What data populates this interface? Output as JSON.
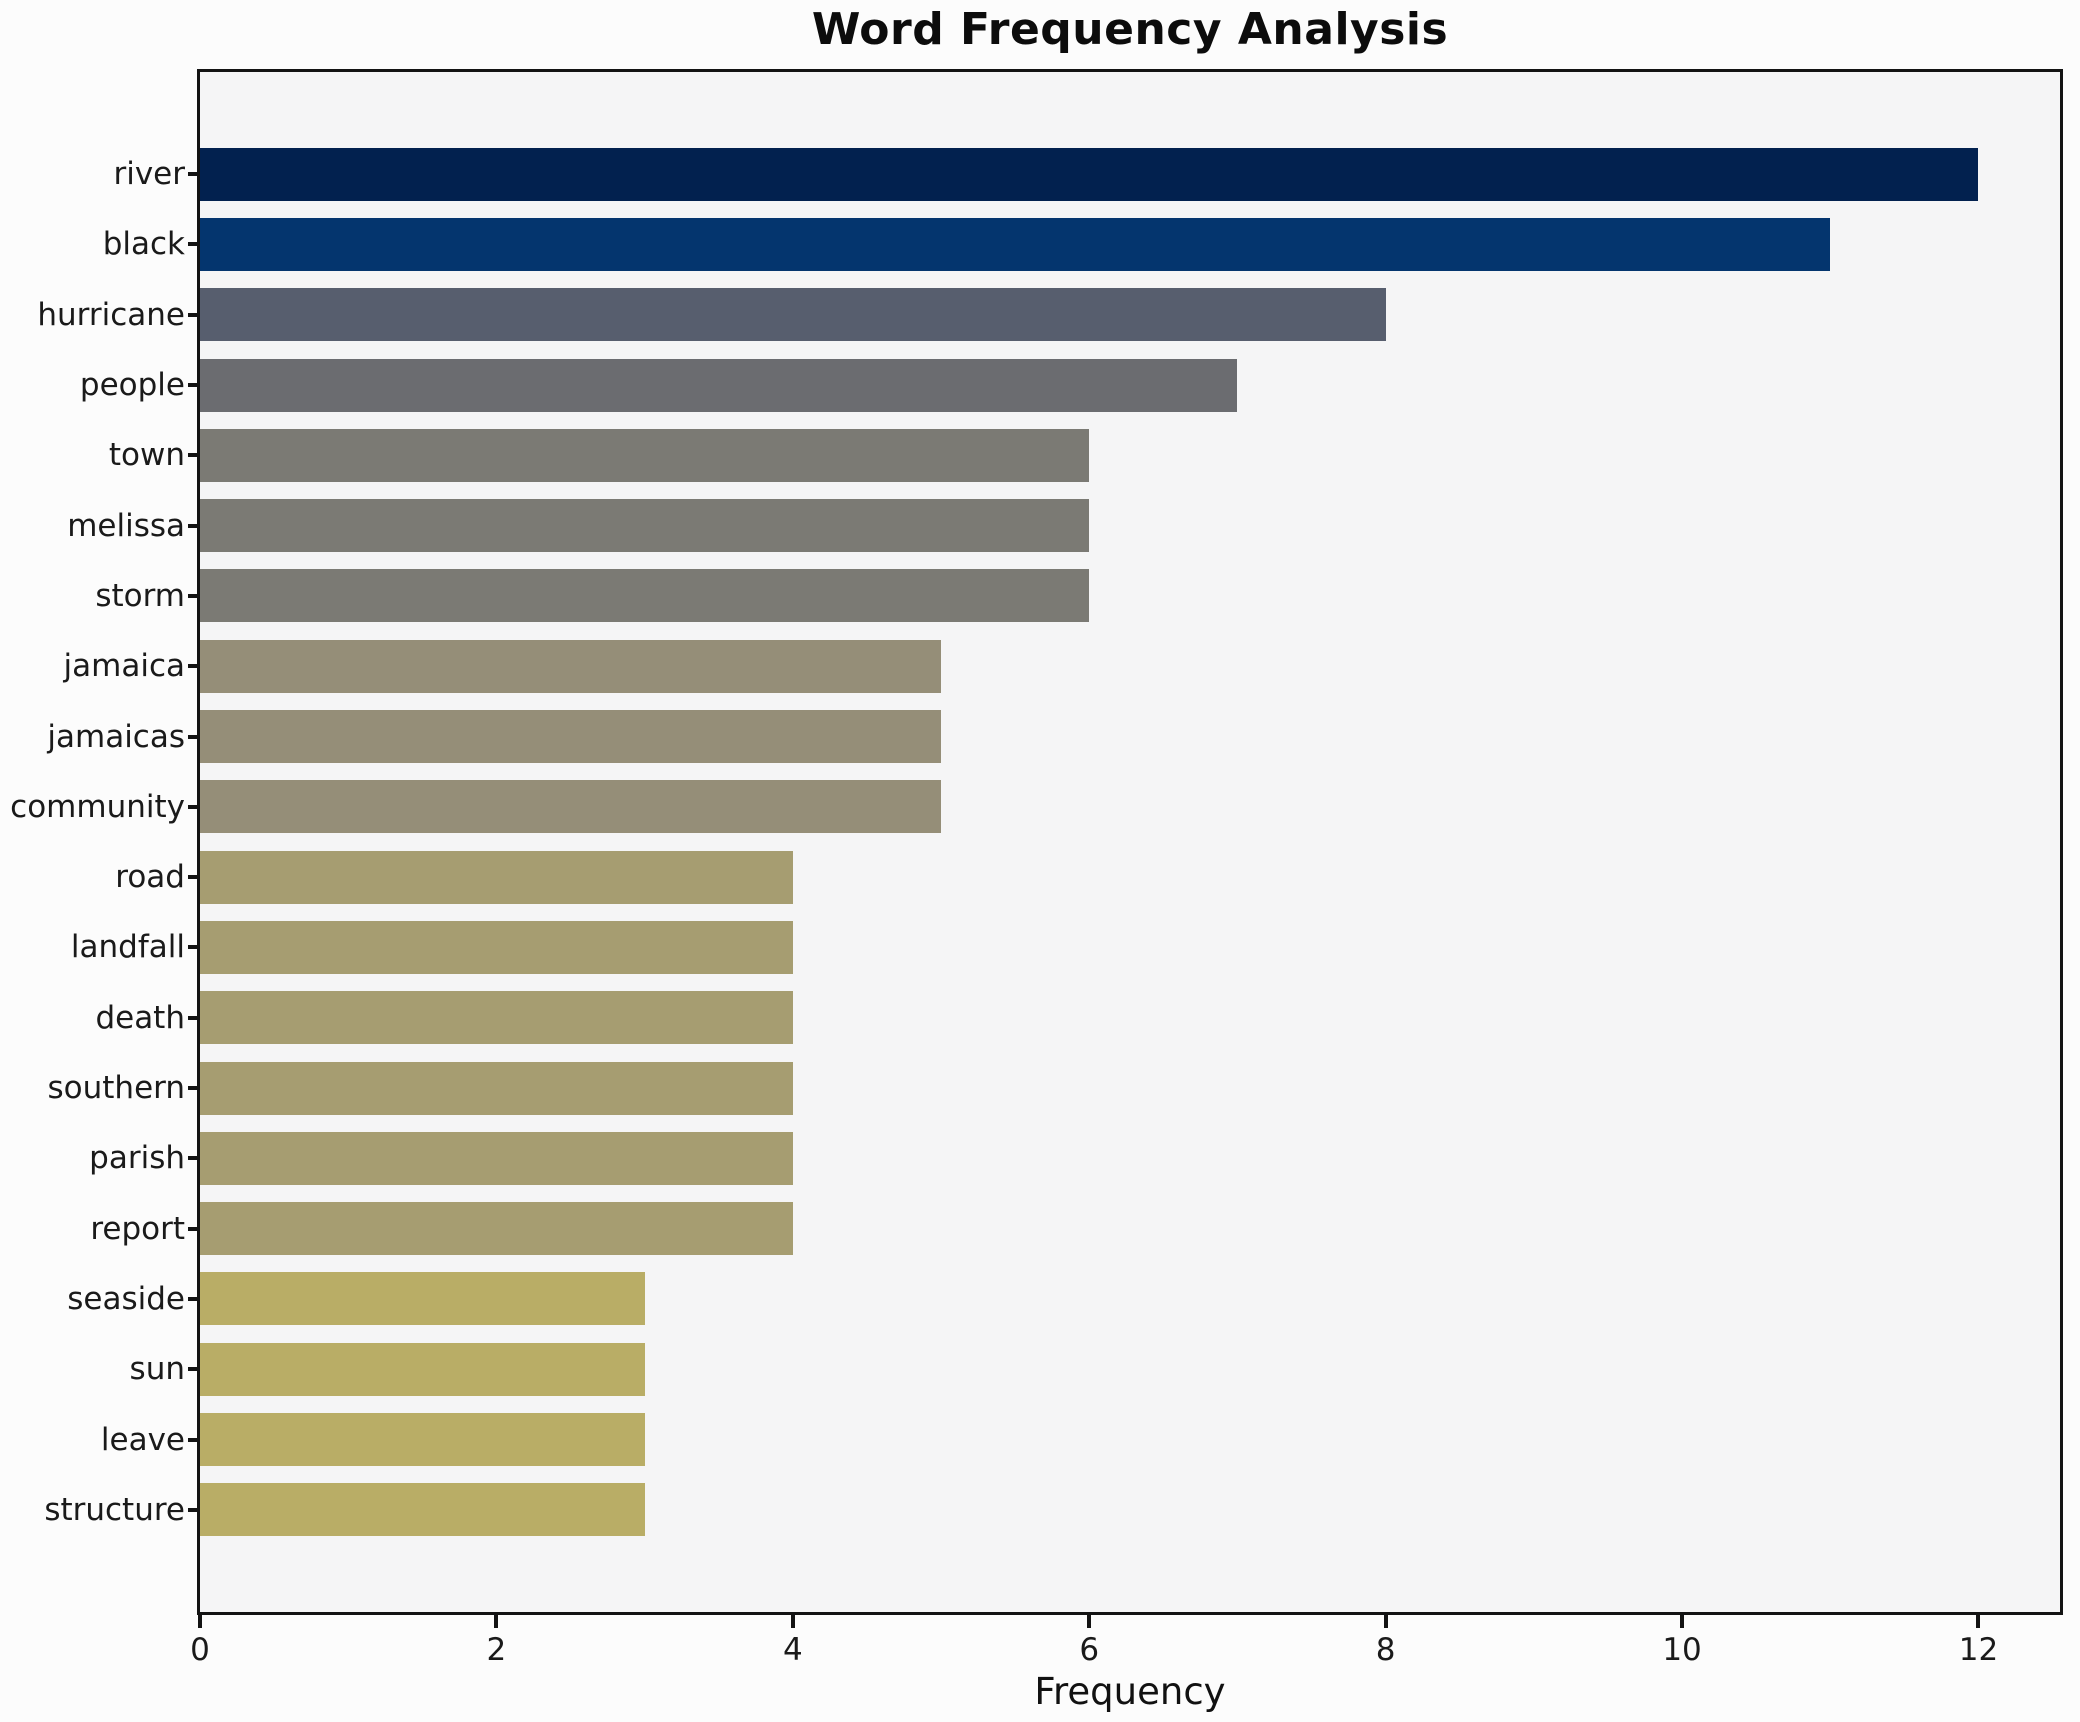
{
  "title": "Word Frequency Analysis",
  "xlabel": "Frequency",
  "chart_data": {
    "type": "bar",
    "orientation": "horizontal",
    "title": "Word Frequency Analysis",
    "xlabel": "Frequency",
    "ylabel": "",
    "categories": [
      "river",
      "black",
      "hurricane",
      "people",
      "town",
      "melissa",
      "storm",
      "jamaica",
      "jamaicas",
      "community",
      "road",
      "landfall",
      "death",
      "southern",
      "parish",
      "report",
      "seaside",
      "sun",
      "leave",
      "structure"
    ],
    "values": [
      12,
      11,
      8,
      7,
      6,
      6,
      6,
      5,
      5,
      5,
      4,
      4,
      4,
      4,
      4,
      4,
      3,
      3,
      3,
      3
    ],
    "bar_colors": [
      "#02214f",
      "#04356e",
      "#575e6e",
      "#6b6c70",
      "#7b7a74",
      "#7b7a74",
      "#7b7a74",
      "#958e78",
      "#958e78",
      "#958e78",
      "#a69d71",
      "#a69d71",
      "#a69d71",
      "#a69d71",
      "#a69d71",
      "#a69d71",
      "#b9ad66",
      "#b9ad66",
      "#b9ad66",
      "#b9ad66"
    ],
    "xticks": [
      0,
      2,
      4,
      6,
      8,
      10,
      12
    ],
    "xlim": [
      0,
      12.55
    ],
    "grid": false,
    "legend": false,
    "colors": {
      "plot_background": "#f5f5f6",
      "figure_background": "#fcfcfc",
      "spine": "#131313",
      "text": "#1a1a1a"
    }
  }
}
